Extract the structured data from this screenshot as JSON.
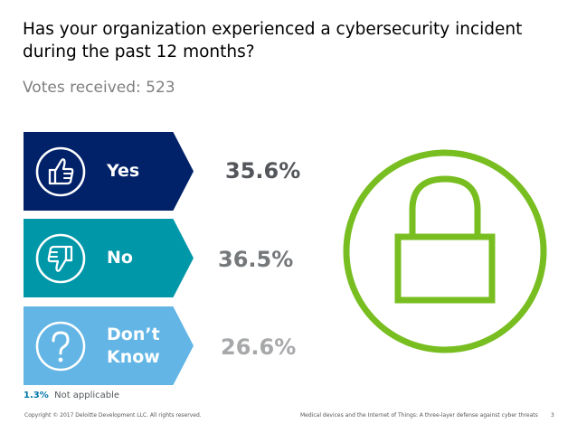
{
  "question": "Has your organization experienced a cybersecurity incident during the past 12 months?",
  "votes_label": "Votes received: 523",
  "chart_data": {
    "type": "bar",
    "title": "Has your organization experienced a cybersecurity incident during the past 12 months?",
    "categories": [
      "Yes",
      "No",
      "Don’t Know",
      "Not applicable"
    ],
    "values": [
      35.6,
      36.5,
      26.6,
      1.3
    ],
    "unit": "%",
    "value_labels": [
      "35.6%",
      "36.5%",
      "26.6%",
      "1.3%"
    ],
    "total_votes": 523
  },
  "answers": [
    {
      "label": "Yes",
      "value_label": "35.6%",
      "icon": "thumbs-up-icon",
      "color": "#012169"
    },
    {
      "label_line1": "No",
      "value_label": "36.5%",
      "icon": "thumbs-down-icon",
      "color": "#0097a9"
    },
    {
      "label_line1": "Don’t",
      "label_line2": "Know",
      "value_label": "26.6%",
      "icon": "question-mark-icon",
      "color": "#62b5e5"
    }
  ],
  "not_applicable": {
    "value_label": "1.3%",
    "label": "Not applicable"
  },
  "lock_icon": {
    "icon": "padlock-icon",
    "color": "#78be20"
  },
  "footer": {
    "copyright": "Copyright © 2017 Deloitte Development LLC. All rights reserved.",
    "title": "Medical devices and the Internet of Things: A three-layer defense against cyber threats",
    "page": "3"
  }
}
